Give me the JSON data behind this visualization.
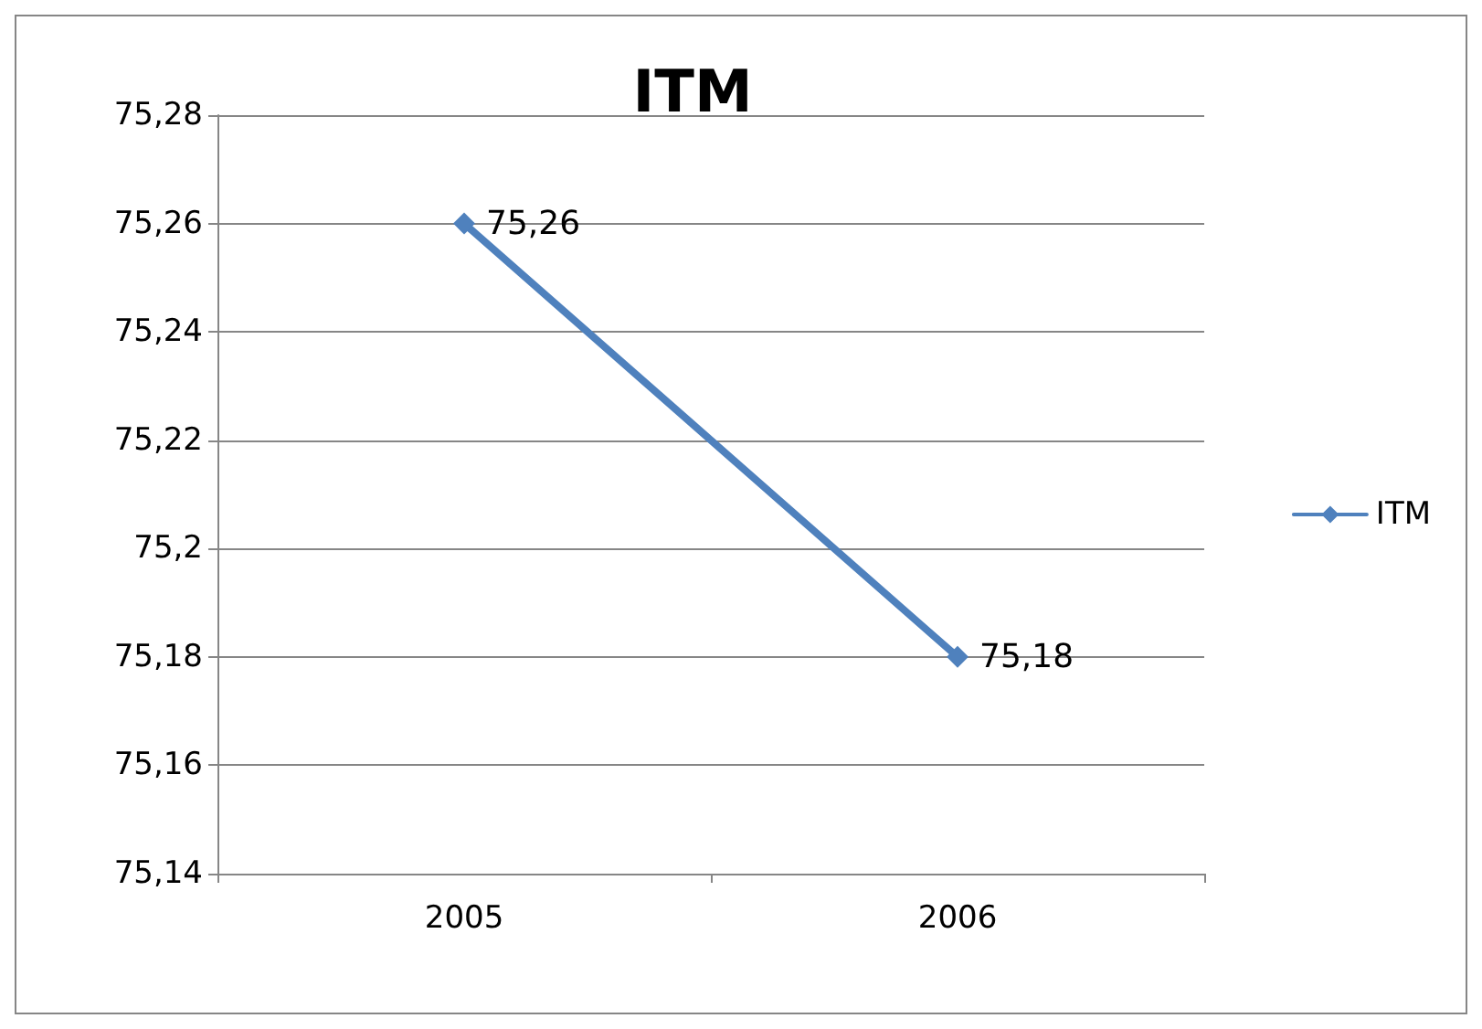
{
  "chart_data": {
    "type": "line",
    "title": "ITM",
    "categories": [
      "2005",
      "2006"
    ],
    "series": [
      {
        "name": "ITM",
        "color": "#4f81bd",
        "values": [
          75.26,
          75.18
        ],
        "value_labels": [
          "75,26",
          "75,18"
        ]
      }
    ],
    "ylim": [
      75.14,
      75.28
    ],
    "yticks": [
      {
        "value": 75.14,
        "label": "75,14"
      },
      {
        "value": 75.16,
        "label": "75,16"
      },
      {
        "value": 75.18,
        "label": "75,18"
      },
      {
        "value": 75.2,
        "label": "75,2"
      },
      {
        "value": 75.22,
        "label": "75,22"
      },
      {
        "value": 75.24,
        "label": "75,24"
      },
      {
        "value": 75.26,
        "label": "75,26"
      },
      {
        "value": 75.28,
        "label": "75,28"
      }
    ],
    "grid": "y",
    "legend": "right",
    "marker": "diamond",
    "line_style": "solid"
  }
}
